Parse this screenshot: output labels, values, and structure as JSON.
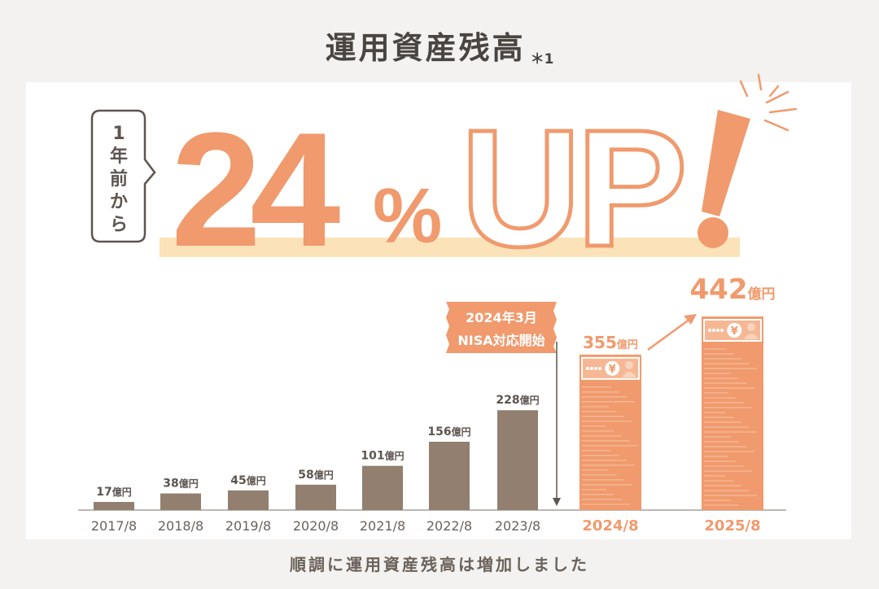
{
  "title": "運用資産残高",
  "title_note": "＊1",
  "badge": {
    "lines": [
      "1",
      "年",
      "前",
      "か",
      "ら"
    ]
  },
  "headline": {
    "number": "24",
    "percent": "%",
    "up": "UP",
    "exclaim": "!"
  },
  "event_label": {
    "line1": "2024年3月",
    "line2": "NISA対応開始"
  },
  "footer_text": "順調に運用資産残高は増加しました",
  "colors": {
    "brown": "#927f6f",
    "orange": "#f09a6d",
    "highlight": "#fbe2b8",
    "text": "#4a4541"
  },
  "chart_data": {
    "type": "bar",
    "categories": [
      "2017/8",
      "2018/8",
      "2019/8",
      "2020/8",
      "2021/8",
      "2022/8",
      "2023/8",
      "2024/8",
      "2025/8"
    ],
    "values": [
      17,
      38,
      45,
      58,
      101,
      156,
      228,
      355,
      442
    ],
    "value_labels": [
      "17億円",
      "38億円",
      "45億円",
      "58億円",
      "101億円",
      "156億円",
      "228億円",
      "355億円",
      "442億円"
    ],
    "highlighted_categories": [
      "2024/8",
      "2025/8"
    ],
    "ylim": [
      0,
      442
    ],
    "grid": false,
    "legend": "none"
  }
}
